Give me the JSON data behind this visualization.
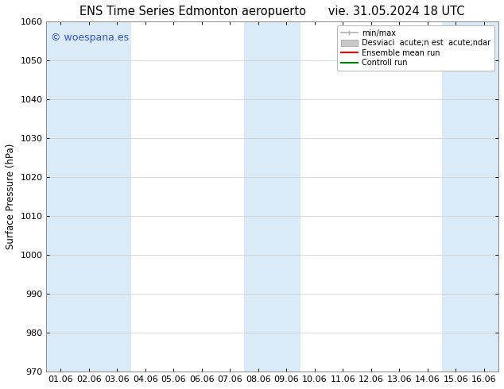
{
  "title_left": "ENS Time Series Edmonton aeropuerto",
  "title_right": "vie. 31.05.2024 18 UTC",
  "ylabel": "Surface Pressure (hPa)",
  "ylim": [
    970,
    1060
  ],
  "yticks": [
    970,
    980,
    990,
    1000,
    1010,
    1020,
    1030,
    1040,
    1050,
    1060
  ],
  "xtick_labels": [
    "01.06",
    "02.06",
    "03.06",
    "04.06",
    "05.06",
    "06.06",
    "07.06",
    "08.06",
    "09.06",
    "10.06",
    "11.06",
    "12.06",
    "13.06",
    "14.06",
    "15.06",
    "16.06"
  ],
  "watermark": "© woespana.es",
  "watermark_color": "#3355cc",
  "background_color": "#ffffff",
  "plot_bg_color": "#ffffff",
  "shaded_band_color": "#daeaf7",
  "shaded_x_starts": [
    0.0,
    1.0,
    2.0,
    7.0,
    8.0,
    14.0,
    15.0
  ],
  "shaded_x_ends": [
    1.0,
    2.0,
    3.0,
    8.0,
    9.0,
    15.0,
    16.0
  ],
  "legend_entry_0": "min/max",
  "legend_entry_1": "Desviaci  acute;n est  acute;ndar",
  "legend_entry_2": "Ensemble mean run",
  "legend_entry_3": "Controll run",
  "legend_color_0": "#b0b0b0",
  "legend_color_1": "#c8c8c8",
  "legend_color_2": "#ff0000",
  "legend_color_3": "#008000",
  "title_fontsize": 10.5,
  "axis_label_fontsize": 8.5,
  "tick_fontsize": 8,
  "watermark_fontsize": 9,
  "legend_fontsize": 7,
  "num_x": 16,
  "x_min": 0.0,
  "x_max": 16.0
}
